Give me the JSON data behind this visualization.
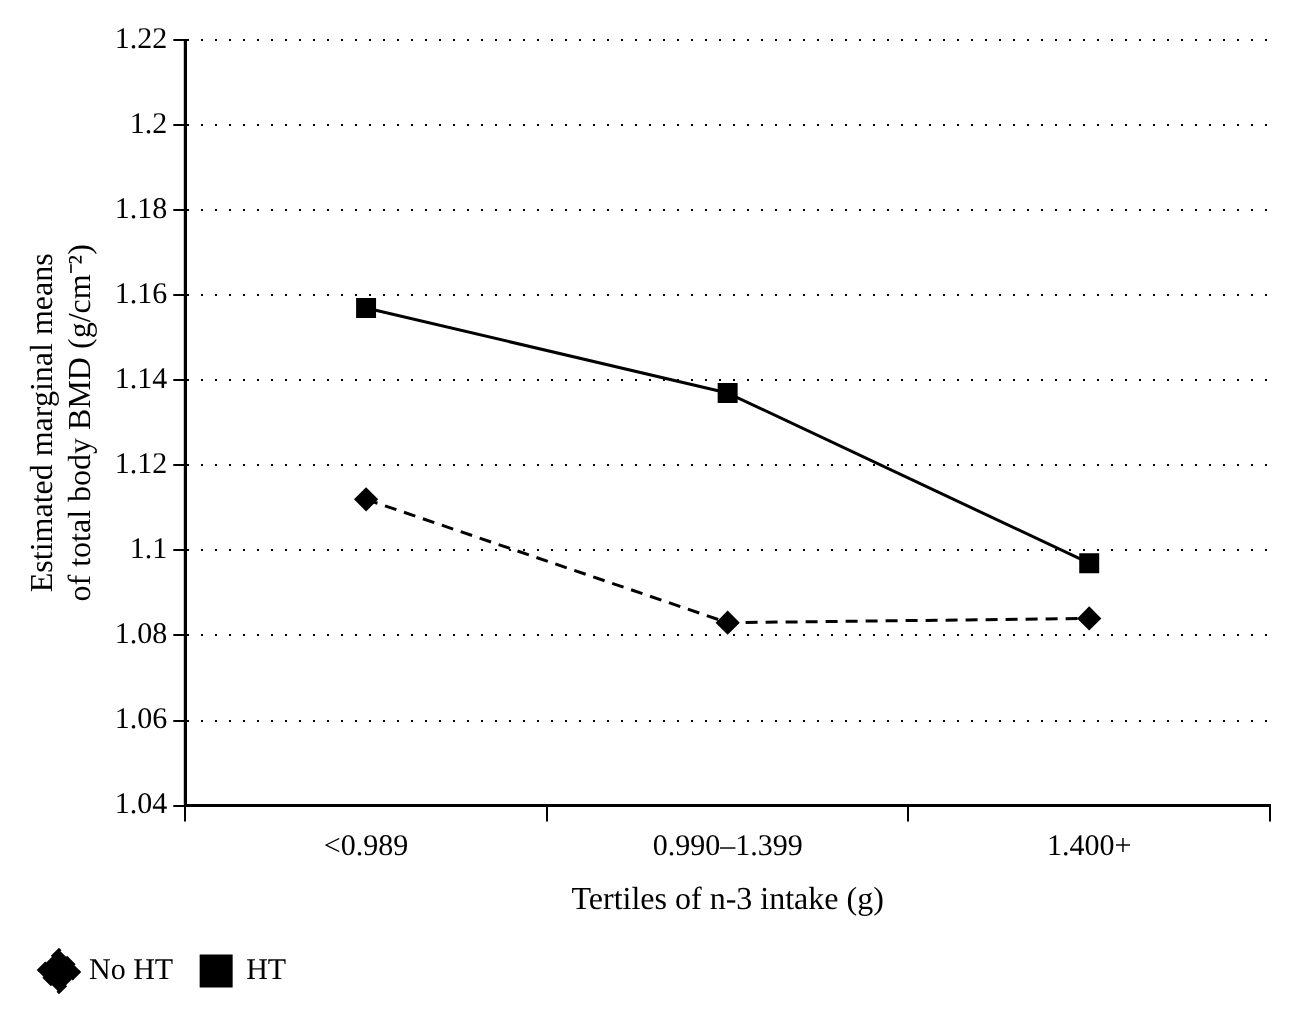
{
  "chart_data": {
    "type": "line",
    "xlabel": "Tertiles of n-3 intake (g)",
    "ylabel": "Estimated marginal means of total body BMD (g/cm⁻²)",
    "categories": [
      "<0.989",
      "0.990–1.399",
      "1.400+"
    ],
    "series": [
      {
        "name": "No HT",
        "color": "#000000",
        "values": [
          1.112,
          1.083,
          1.084
        ],
        "marker": "diamond",
        "line_style": "dashed"
      },
      {
        "name": "HT",
        "color": "#000000",
        "values": [
          1.157,
          1.137,
          1.097
        ],
        "marker": "square",
        "line_style": "solid"
      }
    ],
    "ylim": [
      1.04,
      1.22
    ],
    "yticks": [
      1.04,
      1.06,
      1.08,
      1.1,
      1.12,
      1.14,
      1.16,
      1.18,
      1.2,
      1.22
    ],
    "grid": "y",
    "legend": "bottom left"
  }
}
